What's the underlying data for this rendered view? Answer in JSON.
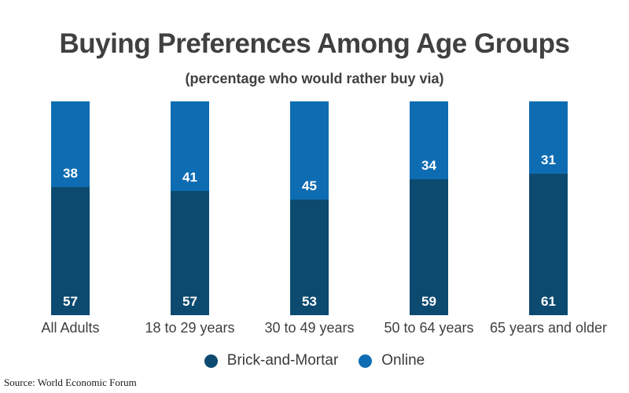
{
  "chart": {
    "title": "Buying Preferences Among Age Groups",
    "subtitle": "(percentage who would rather buy via)"
  },
  "chart_data": {
    "type": "bar",
    "stacked": true,
    "normalized": "each bar scaled to equal full height (percent of its total)",
    "categories": [
      "All Adults",
      "18 to 29 years",
      "30 to 49 years",
      "50 to 64 years",
      "65 years and older"
    ],
    "series": [
      {
        "name": "Brick-and-Mortar",
        "color": "#0d4a70",
        "values": [
          57,
          57,
          53,
          59,
          61
        ]
      },
      {
        "name": "Online",
        "color": "#0e6cb2",
        "values": [
          38,
          41,
          45,
          34,
          31
        ]
      }
    ],
    "value_labels": true,
    "legend_position": "bottom",
    "grid": false,
    "axes_shown": false
  },
  "source": {
    "text": "Source: World Economic Forum"
  },
  "colors": {
    "brick_and_mortar": "#0d4a70",
    "online": "#0e6cb2",
    "title_text": "#404040",
    "category_text": "#404040",
    "legend_text": "#3a3a3a",
    "background": "#ffffff"
  }
}
